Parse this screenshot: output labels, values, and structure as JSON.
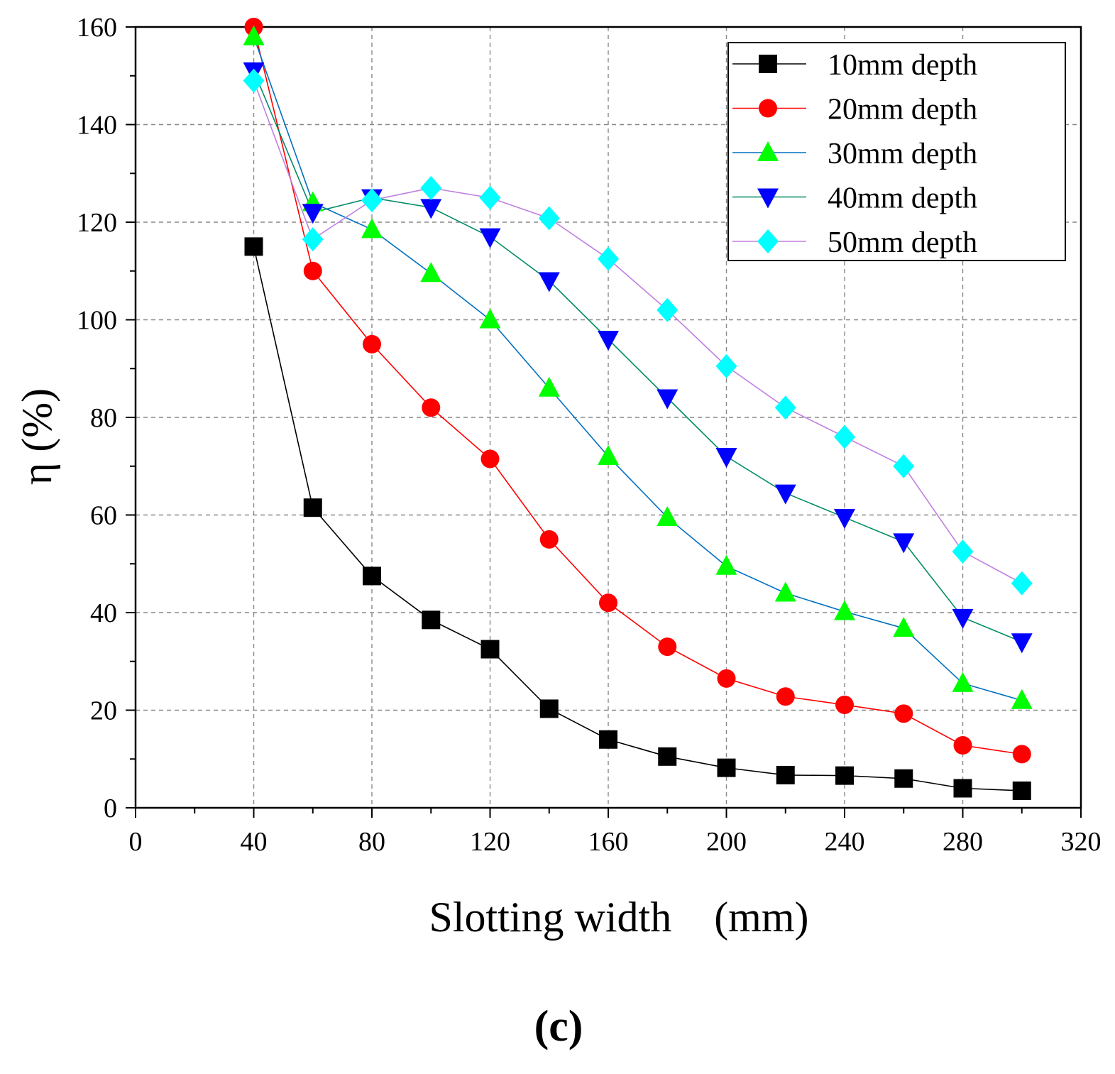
{
  "chart_data": {
    "type": "line",
    "title": "",
    "xlabel": "Slotting width　(mm)",
    "ylabel": "η (%)",
    "caption": "(c)",
    "xlim": [
      0,
      320
    ],
    "ylim": [
      0,
      160
    ],
    "xticks": [
      "0",
      "40",
      "80",
      "120",
      "160",
      "200",
      "240",
      "280",
      "320"
    ],
    "yticks": [
      "0",
      "20",
      "40",
      "60",
      "80",
      "100",
      "120",
      "140",
      "160"
    ],
    "grid": true,
    "legend_position": "top-right",
    "x": [
      40,
      60,
      80,
      100,
      120,
      140,
      160,
      180,
      200,
      220,
      240,
      260,
      280,
      300
    ],
    "series": [
      {
        "name": "10mm depth",
        "color": "#000000",
        "marker": "square",
        "values": [
          115,
          61.5,
          47.5,
          38.5,
          32.5,
          20.3,
          14,
          10.5,
          8.2,
          6.7,
          6.6,
          6,
          4,
          3.5
        ]
      },
      {
        "name": "20mm depth",
        "color": "#ff0000",
        "marker": "circle",
        "values": [
          160,
          110,
          95,
          82,
          71.5,
          55,
          42,
          33,
          26.5,
          22.8,
          21.1,
          19.3,
          12.8,
          11
        ]
      },
      {
        "name": "30mm depth",
        "color": "#00ff00",
        "line_color": "#0070c0",
        "marker": "triangle-up",
        "values": [
          158,
          124,
          118.5,
          109.5,
          100,
          86,
          72,
          59.5,
          49.5,
          44,
          40.2,
          36.8,
          25.5,
          22
        ]
      },
      {
        "name": "40mm depth",
        "color": "#0000ff",
        "line_color": "#008c66",
        "marker": "triangle-down",
        "values": [
          151,
          122,
          125,
          123,
          117,
          108,
          96,
          84,
          72,
          64.5,
          59.5,
          54.5,
          39,
          34
        ]
      },
      {
        "name": "50mm depth",
        "color": "#00ffff",
        "line_color": "#c080e0",
        "marker": "diamond",
        "values": [
          149,
          116.5,
          124.5,
          127,
          125,
          120.8,
          112.5,
          102,
          90.5,
          82,
          76,
          70,
          52.5,
          46
        ]
      }
    ]
  }
}
